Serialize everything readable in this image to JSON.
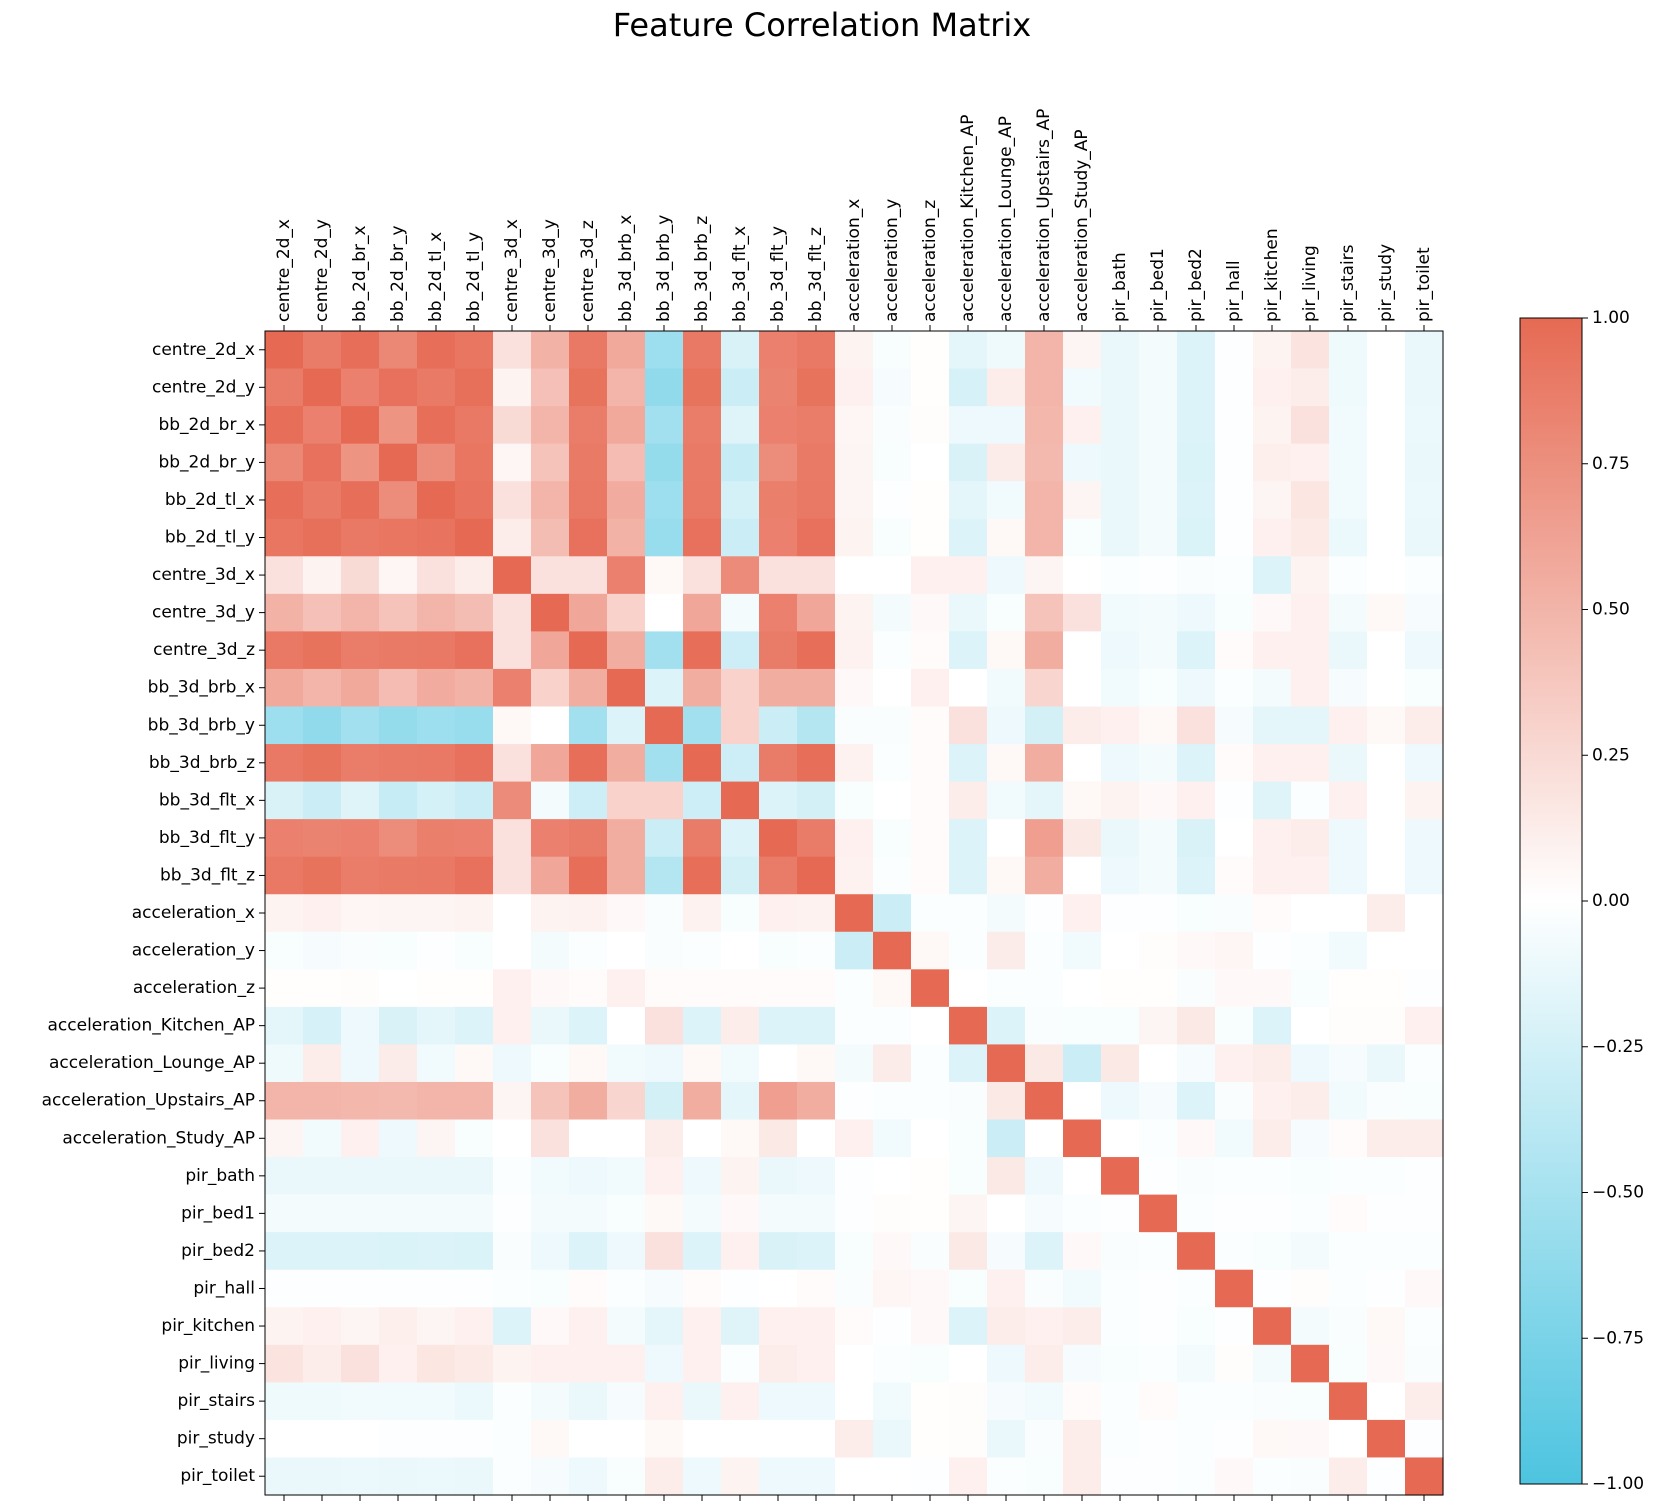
{
  "chart_data": {
    "type": "heatmap",
    "title": "Feature Correlation Matrix",
    "labels": [
      "centre_2d_x",
      "centre_2d_y",
      "bb_2d_br_x",
      "bb_2d_br_y",
      "bb_2d_tl_x",
      "bb_2d_tl_y",
      "centre_3d_x",
      "centre_3d_y",
      "centre_3d_z",
      "bb_3d_brb_x",
      "bb_3d_brb_y",
      "bb_3d_brb_z",
      "bb_3d_flt_x",
      "bb_3d_flt_y",
      "bb_3d_flt_z",
      "acceleration_x",
      "acceleration_y",
      "acceleration_z",
      "acceleration_Kitchen_AP",
      "acceleration_Lounge_AP",
      "acceleration_Upstairs_AP",
      "acceleration_Study_AP",
      "pir_bath",
      "pir_bed1",
      "pir_bed2",
      "pir_hall",
      "pir_kitchen",
      "pir_living",
      "pir_stairs",
      "pir_study",
      "pir_toilet"
    ],
    "x_tick_position": "top",
    "colorbar": {
      "min": -1.0,
      "max": 1.0,
      "ticks": [
        1.0,
        0.75,
        0.5,
        0.25,
        0.0,
        -0.25,
        -0.5,
        -0.75,
        -1.0
      ],
      "tick_labels": [
        "1.00",
        "0.75",
        "0.50",
        "0.25",
        "0.00",
        "−0.25",
        "−0.50",
        "−0.75",
        "−1.00"
      ],
      "colormap": "diverging",
      "low_color": "#4dc4e0",
      "mid_color": "#ffffff",
      "high_color": "#e66a53"
    },
    "values": [
      [
        1,
        0.88,
        0.97,
        0.8,
        0.97,
        0.92,
        0.2,
        0.52,
        0.9,
        0.58,
        -0.55,
        0.9,
        -0.22,
        0.85,
        0.9,
        0.08,
        -0.04,
        0.01,
        -0.15,
        -0.09,
        0.5,
        0.07,
        -0.12,
        -0.06,
        -0.2,
        -0.01,
        0.08,
        0.18,
        -0.09,
        0,
        -0.12
      ],
      [
        0.88,
        1,
        0.85,
        0.95,
        0.89,
        0.96,
        0.08,
        0.42,
        0.94,
        0.5,
        -0.62,
        0.94,
        -0.3,
        0.83,
        0.94,
        0.1,
        -0.05,
        0.01,
        -0.23,
        0.12,
        0.5,
        -0.08,
        -0.12,
        -0.06,
        -0.2,
        -0.01,
        0.1,
        0.12,
        -0.09,
        0,
        -0.12
      ],
      [
        0.97,
        0.85,
        1,
        0.72,
        0.97,
        0.9,
        0.24,
        0.5,
        0.87,
        0.58,
        -0.52,
        0.87,
        -0.18,
        0.85,
        0.87,
        0.06,
        -0.03,
        0.02,
        -0.1,
        -0.1,
        0.48,
        0.1,
        -0.12,
        -0.06,
        -0.2,
        -0.01,
        0.08,
        0.2,
        -0.08,
        0,
        -0.11
      ],
      [
        0.8,
        0.95,
        0.72,
        1,
        0.77,
        0.92,
        0.06,
        0.4,
        0.89,
        0.45,
        -0.6,
        0.89,
        -0.32,
        0.77,
        0.89,
        0.07,
        -0.04,
        0,
        -0.22,
        0.13,
        0.47,
        -0.1,
        -0.12,
        -0.06,
        -0.21,
        -0.01,
        0.11,
        0.1,
        -0.08,
        0,
        -0.12
      ],
      [
        0.97,
        0.89,
        0.97,
        0.77,
        1,
        0.93,
        0.2,
        0.5,
        0.9,
        0.56,
        -0.55,
        0.9,
        -0.24,
        0.86,
        0.9,
        0.07,
        -0.01,
        0.01,
        -0.15,
        -0.08,
        0.5,
        0.07,
        -0.12,
        -0.06,
        -0.2,
        -0.01,
        0.07,
        0.17,
        -0.08,
        0,
        -0.11
      ],
      [
        0.92,
        0.96,
        0.9,
        0.92,
        0.93,
        1,
        0.12,
        0.44,
        0.95,
        0.52,
        -0.58,
        0.95,
        -0.3,
        0.85,
        0.95,
        0.08,
        -0.04,
        0.01,
        -0.2,
        0.05,
        0.5,
        -0.04,
        -0.12,
        -0.06,
        -0.21,
        -0.01,
        0.1,
        0.14,
        -0.11,
        0,
        -0.12
      ],
      [
        0.2,
        0.08,
        0.24,
        0.06,
        0.2,
        0.12,
        1,
        0.2,
        0.2,
        0.85,
        0.05,
        0.2,
        0.78,
        0.2,
        0.2,
        0,
        0,
        0.1,
        0.1,
        -0.1,
        0.07,
        0,
        -0.02,
        -0.01,
        -0.03,
        -0.02,
        -0.2,
        0.08,
        -0.02,
        0,
        -0.02
      ],
      [
        0.52,
        0.42,
        0.5,
        0.4,
        0.5,
        0.44,
        0.2,
        1,
        0.6,
        0.3,
        0,
        0.6,
        -0.07,
        0.85,
        0.6,
        0.08,
        -0.06,
        0.04,
        -0.12,
        -0.04,
        0.4,
        0.2,
        -0.08,
        -0.06,
        -0.1,
        -0.04,
        0.04,
        0.1,
        -0.06,
        0.05,
        -0.05
      ],
      [
        0.9,
        0.94,
        0.87,
        0.89,
        0.9,
        0.95,
        0.2,
        0.6,
        1,
        0.55,
        -0.52,
        0.97,
        -0.28,
        0.88,
        0.97,
        0.09,
        -0.02,
        0.03,
        -0.2,
        0.05,
        0.55,
        0,
        -0.1,
        -0.06,
        -0.2,
        0.03,
        0.1,
        0.1,
        -0.12,
        0,
        -0.1
      ],
      [
        0.58,
        0.5,
        0.58,
        0.45,
        0.56,
        0.52,
        0.85,
        0.3,
        0.55,
        1,
        -0.2,
        0.55,
        0.3,
        0.55,
        0.55,
        0.04,
        0,
        0.1,
        0,
        -0.08,
        0.28,
        0,
        -0.08,
        -0.04,
        -0.1,
        -0.02,
        -0.07,
        0.1,
        -0.05,
        0,
        -0.04
      ],
      [
        -0.55,
        -0.62,
        -0.52,
        -0.6,
        -0.55,
        -0.58,
        0.05,
        0,
        -0.52,
        -0.2,
        1,
        -0.52,
        0.3,
        -0.3,
        -0.42,
        -0.03,
        -0.03,
        0.03,
        0.2,
        -0.1,
        -0.25,
        0.12,
        0.1,
        0.05,
        0.2,
        -0.05,
        -0.15,
        -0.15,
        0.1,
        0.05,
        0.12
      ],
      [
        0.9,
        0.94,
        0.87,
        0.89,
        0.9,
        0.95,
        0.2,
        0.6,
        0.97,
        0.55,
        -0.52,
        1,
        -0.28,
        0.88,
        0.97,
        0.09,
        -0.02,
        0.03,
        -0.2,
        0.05,
        0.55,
        0,
        -0.1,
        -0.06,
        -0.2,
        0.03,
        0.1,
        0.1,
        -0.12,
        0,
        -0.1
      ],
      [
        -0.22,
        -0.3,
        -0.18,
        -0.32,
        -0.24,
        -0.3,
        0.78,
        -0.07,
        -0.28,
        0.3,
        0.3,
        -0.28,
        1,
        -0.2,
        -0.25,
        -0.04,
        0,
        0.03,
        0.12,
        -0.08,
        -0.15,
        0.05,
        0.08,
        0.04,
        0.1,
        -0.01,
        -0.18,
        -0.02,
        0.1,
        0,
        0.08
      ],
      [
        0.85,
        0.83,
        0.85,
        0.77,
        0.86,
        0.85,
        0.2,
        0.85,
        0.88,
        0.55,
        -0.3,
        0.88,
        -0.2,
        1,
        0.88,
        0.1,
        -0.04,
        0.03,
        -0.2,
        0,
        0.65,
        0.15,
        -0.12,
        -0.06,
        -0.22,
        0,
        0.1,
        0.12,
        -0.1,
        0,
        -0.1
      ],
      [
        0.9,
        0.94,
        0.87,
        0.89,
        0.9,
        0.95,
        0.2,
        0.6,
        0.97,
        0.55,
        -0.42,
        0.97,
        -0.25,
        0.88,
        1,
        0.09,
        -0.02,
        0.03,
        -0.2,
        0.05,
        0.55,
        0,
        -0.1,
        -0.06,
        -0.2,
        0.03,
        0.1,
        0.1,
        -0.1,
        0,
        -0.1
      ],
      [
        0.08,
        0.1,
        0.06,
        0.07,
        0.07,
        0.08,
        0,
        0.08,
        0.09,
        0.04,
        -0.03,
        0.09,
        -0.04,
        0.1,
        0.09,
        1,
        -0.3,
        -0.02,
        -0.02,
        -0.06,
        -0.01,
        0.1,
        -0.01,
        -0.01,
        -0.04,
        -0.03,
        0.03,
        0,
        0,
        0.12,
        0
      ],
      [
        -0.04,
        -0.05,
        -0.03,
        -0.04,
        -0.01,
        -0.04,
        0,
        -0.06,
        -0.02,
        0,
        -0.03,
        -0.02,
        0,
        -0.04,
        -0.02,
        -0.3,
        1,
        0.05,
        -0.02,
        0.13,
        -0.02,
        -0.08,
        0,
        0.02,
        0.04,
        0.06,
        -0.01,
        -0.02,
        -0.08,
        0,
        0
      ],
      [
        0.01,
        0.01,
        0.02,
        0,
        0.01,
        0.01,
        0.1,
        0.04,
        0.03,
        0.1,
        0.03,
        0.03,
        0.03,
        0.03,
        0.03,
        -0.02,
        0.05,
        1,
        0,
        -0.02,
        -0.02,
        0,
        0.01,
        0.01,
        -0.03,
        0.04,
        0.04,
        -0.04,
        0.01,
        0.01,
        -0.01
      ],
      [
        -0.15,
        -0.23,
        -0.1,
        -0.22,
        -0.15,
        -0.2,
        0.1,
        -0.12,
        -0.2,
        0,
        0.2,
        -0.2,
        0.12,
        -0.2,
        -0.2,
        -0.02,
        -0.02,
        0,
        1,
        -0.2,
        -0.03,
        -0.04,
        -0.04,
        0.07,
        0.15,
        -0.04,
        -0.2,
        0,
        0.02,
        0.02,
        0.1
      ],
      [
        -0.09,
        0.12,
        -0.1,
        0.13,
        -0.08,
        0.05,
        -0.1,
        -0.04,
        0.05,
        -0.08,
        -0.1,
        0.05,
        -0.08,
        0,
        0.05,
        -0.06,
        0.13,
        -0.02,
        -0.2,
        1,
        0.15,
        -0.3,
        0.15,
        0,
        -0.05,
        0.1,
        0.12,
        -0.1,
        -0.05,
        -0.12,
        -0.02
      ],
      [
        0.5,
        0.5,
        0.48,
        0.47,
        0.5,
        0.5,
        0.07,
        0.4,
        0.55,
        0.28,
        -0.25,
        0.55,
        -0.15,
        0.65,
        0.55,
        -0.01,
        -0.02,
        -0.02,
        -0.03,
        0.15,
        1,
        0,
        -0.1,
        -0.05,
        -0.2,
        -0.03,
        0.1,
        0.12,
        -0.08,
        -0.03,
        -0.04
      ],
      [
        0.07,
        -0.08,
        0.1,
        -0.1,
        0.07,
        -0.04,
        0,
        0.2,
        0,
        0,
        0.12,
        0,
        0.05,
        0.15,
        0,
        0.1,
        -0.08,
        0,
        -0.04,
        -0.3,
        0,
        1,
        0,
        -0.02,
        0.04,
        -0.08,
        0.12,
        -0.05,
        0.03,
        0.12,
        0.12
      ],
      [
        -0.12,
        -0.12,
        -0.12,
        -0.12,
        -0.12,
        -0.12,
        -0.02,
        -0.08,
        -0.1,
        -0.08,
        0.1,
        -0.1,
        0.08,
        -0.12,
        -0.1,
        -0.01,
        0,
        0.01,
        -0.04,
        0.15,
        -0.1,
        0,
        1,
        -0.01,
        -0.03,
        -0.02,
        -0.02,
        -0.04,
        -0.02,
        -0.02,
        -0.01
      ],
      [
        -0.06,
        -0.06,
        -0.06,
        -0.06,
        -0.06,
        -0.06,
        -0.01,
        -0.06,
        -0.06,
        -0.04,
        0.05,
        -0.06,
        0.04,
        -0.06,
        -0.06,
        -0.01,
        0.02,
        0.01,
        0.07,
        0,
        -0.05,
        -0.02,
        -0.01,
        1,
        -0.02,
        -0.01,
        -0.01,
        -0.02,
        0.03,
        -0.01,
        -0.01
      ],
      [
        -0.2,
        -0.2,
        -0.2,
        -0.21,
        -0.2,
        -0.21,
        -0.03,
        -0.1,
        -0.2,
        -0.1,
        0.2,
        -0.2,
        0.1,
        -0.22,
        -0.2,
        -0.04,
        0.04,
        -0.03,
        0.15,
        -0.05,
        -0.2,
        0.04,
        -0.03,
        -0.02,
        1,
        -0.02,
        -0.04,
        -0.06,
        -0.02,
        -0.02,
        -0.02
      ],
      [
        -0.01,
        -0.01,
        -0.01,
        -0.01,
        -0.01,
        -0.01,
        -0.02,
        -0.04,
        0.03,
        -0.02,
        -0.05,
        0.03,
        -0.01,
        0,
        0.03,
        -0.03,
        0.06,
        0.04,
        -0.04,
        0.1,
        -0.03,
        -0.08,
        -0.02,
        -0.01,
        -0.02,
        1,
        -0.01,
        0.02,
        -0.02,
        -0.01,
        0.04
      ],
      [
        0.08,
        0.1,
        0.07,
        0.11,
        0.07,
        0.1,
        -0.2,
        0.04,
        0.1,
        -0.07,
        -0.15,
        0.1,
        -0.18,
        0.1,
        0.1,
        0.03,
        -0.01,
        0.04,
        -0.2,
        0.12,
        0.1,
        0.12,
        -0.02,
        -0.01,
        -0.04,
        -0.01,
        1,
        -0.06,
        -0.03,
        0.05,
        -0.02
      ],
      [
        0.18,
        0.12,
        0.2,
        0.1,
        0.17,
        0.14,
        0.08,
        0.1,
        0.1,
        0.1,
        -0.1,
        0.1,
        -0.02,
        0.12,
        0.1,
        0,
        -0.02,
        -0.04,
        0,
        -0.1,
        0.12,
        -0.05,
        -0.04,
        -0.02,
        -0.06,
        0.02,
        -0.06,
        1,
        -0.04,
        0.04,
        -0.03
      ],
      [
        -0.09,
        -0.09,
        -0.08,
        -0.08,
        -0.08,
        -0.11,
        -0.02,
        -0.06,
        -0.12,
        -0.05,
        0.1,
        -0.12,
        0.1,
        -0.1,
        -0.1,
        0,
        -0.08,
        0.01,
        0.02,
        -0.05,
        -0.08,
        0.03,
        -0.02,
        0.03,
        -0.02,
        -0.02,
        -0.03,
        -0.04,
        1,
        0,
        0.12
      ],
      [
        0,
        0,
        0,
        -0.01,
        -0.01,
        -0.01,
        -0.02,
        0.05,
        0,
        0,
        0.05,
        0,
        0,
        0,
        0,
        0.12,
        -0.12,
        0.01,
        0.02,
        -0.12,
        -0.03,
        0.12,
        -0.02,
        -0.01,
        -0.02,
        -0.01,
        0.05,
        0.04,
        0,
        1,
        -0.01
      ],
      [
        -0.12,
        -0.12,
        -0.11,
        -0.12,
        -0.11,
        -0.12,
        -0.02,
        -0.05,
        -0.1,
        -0.04,
        0.12,
        -0.1,
        0.08,
        -0.1,
        -0.1,
        0,
        0,
        -0.01,
        0.1,
        -0.02,
        -0.04,
        0.12,
        -0.01,
        -0.01,
        -0.02,
        0.04,
        -0.02,
        -0.03,
        0.12,
        -0.01,
        1
      ]
    ]
  }
}
